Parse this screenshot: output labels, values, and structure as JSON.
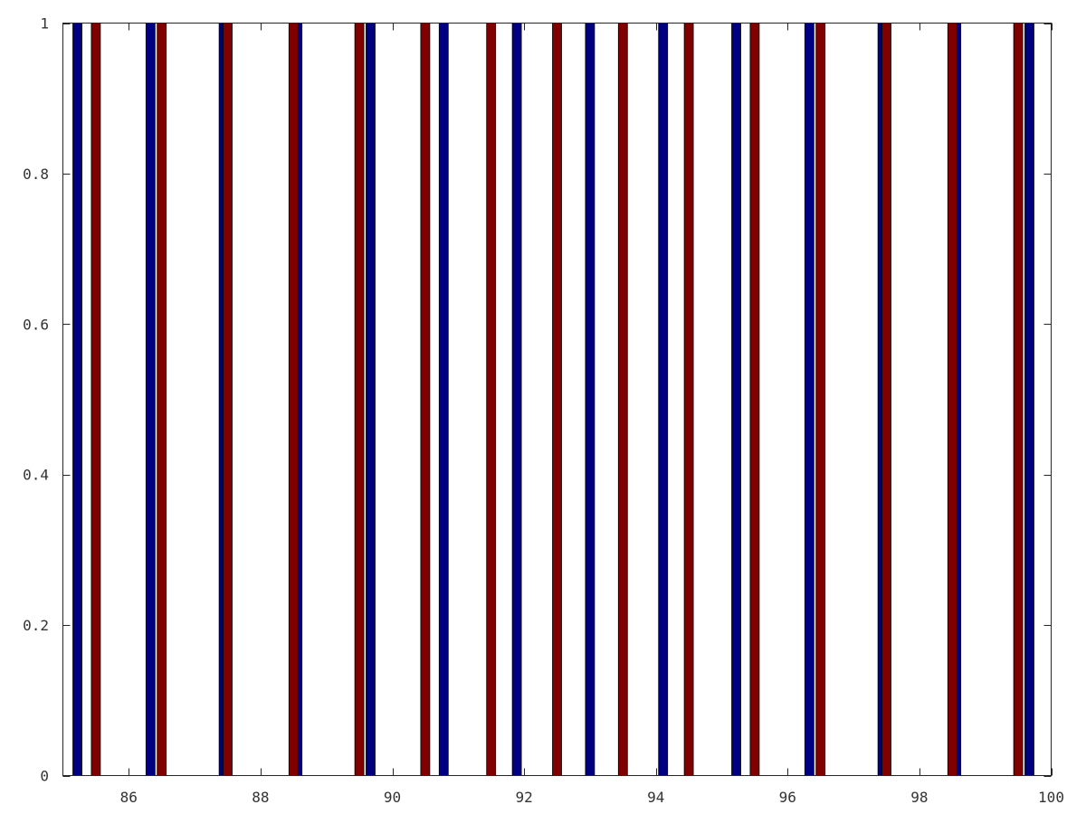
{
  "chart_data": {
    "type": "bar",
    "title": "",
    "xlabel": "",
    "ylabel": "",
    "xlim": [
      85,
      100
    ],
    "ylim": [
      0,
      1
    ],
    "grid": false,
    "legend": "none",
    "x_ticks": [
      86,
      88,
      90,
      92,
      94,
      96,
      98,
      100
    ],
    "x_tick_labels": [
      "86",
      "88",
      "90",
      "92",
      "94",
      "96",
      "98",
      "100"
    ],
    "y_ticks": [
      0,
      0.2,
      0.4,
      0.6,
      0.8,
      1
    ],
    "y_tick_labels": [
      "0",
      "0.2",
      "0.4",
      "0.6",
      "0.8",
      "1"
    ],
    "series": [
      {
        "color": "#000080",
        "x": [
          85.22,
          86.33,
          87.44,
          88.56,
          89.67,
          90.78,
          91.89,
          93.0,
          94.11,
          95.22,
          96.33,
          97.44,
          98.56,
          99.67
        ],
        "values": [
          1,
          1,
          1,
          1,
          1,
          1,
          1,
          1,
          1,
          1,
          1,
          1,
          1,
          1
        ]
      },
      {
        "color": "#800000",
        "x": [
          85.5,
          86.5,
          87.5,
          88.5,
          89.5,
          90.5,
          91.5,
          92.5,
          93.5,
          94.5,
          95.5,
          96.5,
          97.5,
          98.5,
          99.5
        ],
        "values": [
          1,
          1,
          1,
          1,
          1,
          1,
          1,
          1,
          1,
          1,
          1,
          1,
          1,
          1,
          1
        ]
      }
    ]
  }
}
